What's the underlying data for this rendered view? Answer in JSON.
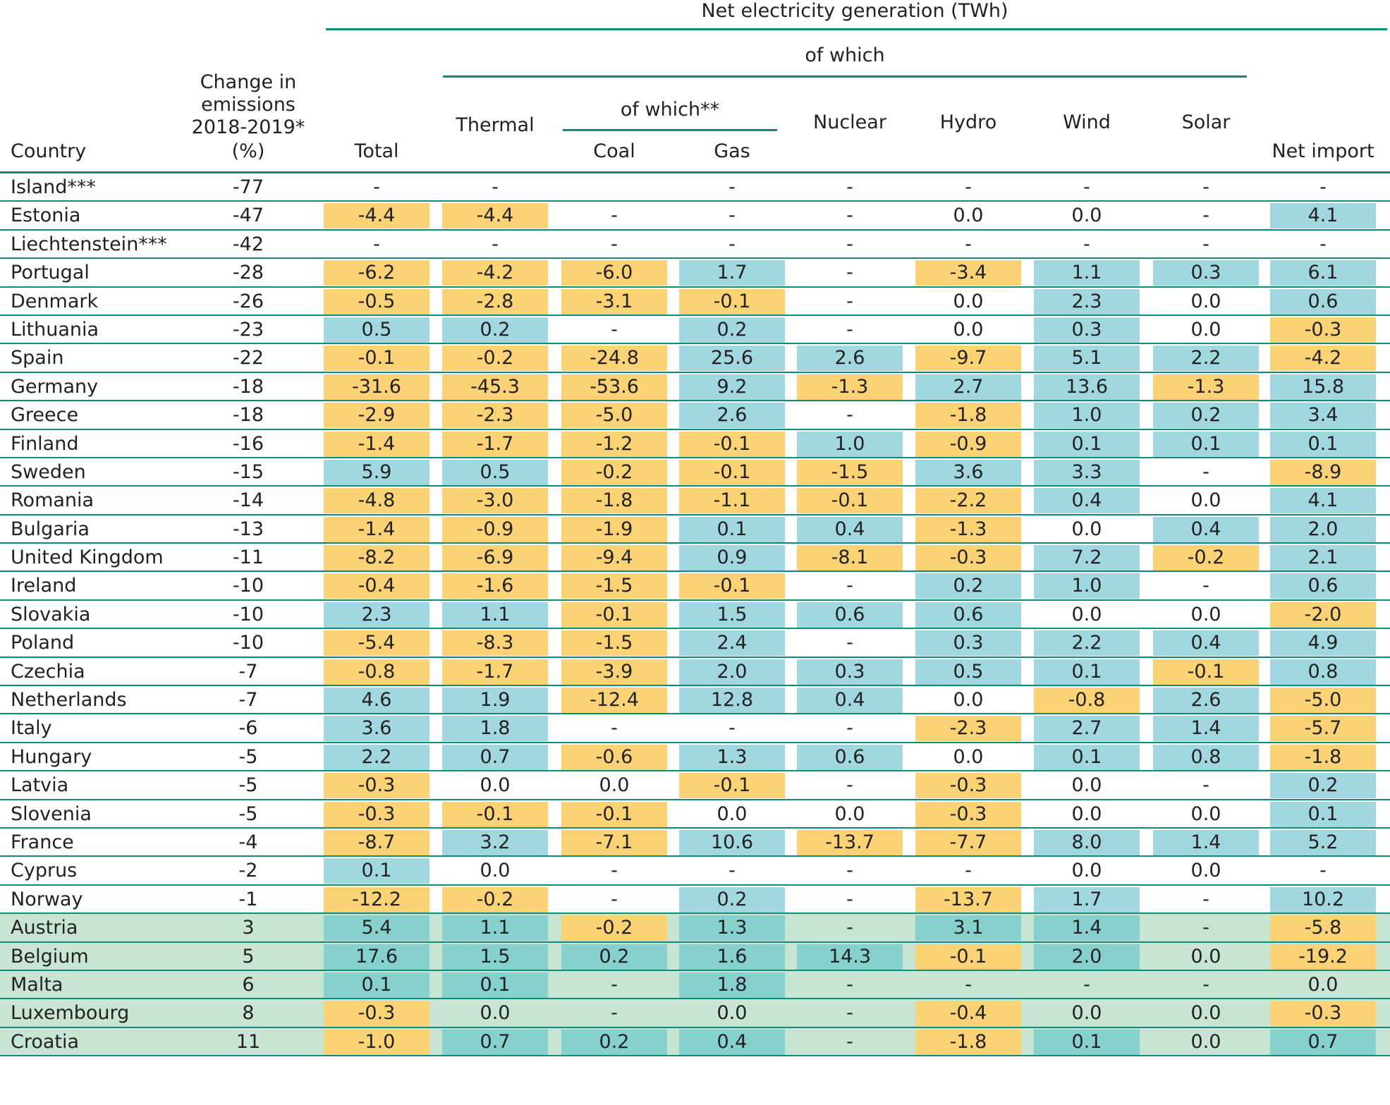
{
  "header": {
    "net_generation": "Net electricity generation (TWh)",
    "of_which": "of which",
    "of_which_sub": "of which**",
    "country": "Country",
    "change_line1": "Change in",
    "change_line2": "emissions",
    "change_line3": "2018-2019*",
    "change_line4": "(%)",
    "total": "Total",
    "thermal": "Thermal",
    "coal": "Coal",
    "gas": "Gas",
    "nuclear": "Nuclear",
    "hydro": "Hydro",
    "wind": "Wind",
    "solar": "Solar",
    "net_import": "Net import"
  },
  "colors": {
    "rule": "#0f8c78",
    "decrease_fill": "#fbd374",
    "increase_fill": "#a1d7de",
    "increase_fill_on_green": "#86d1cd",
    "increasing_emissions_row": "#c8e4d2"
  },
  "rows": [
    {
      "country": "Island***",
      "change": "-77",
      "values": [
        "-",
        "-",
        "",
        "-",
        "-",
        "-",
        "-",
        "-",
        "-"
      ]
    },
    {
      "country": "Estonia",
      "change": "-47",
      "values": [
        "-4.4",
        "-4.4",
        "-",
        "-",
        "-",
        "0.0",
        "0.0",
        "-",
        "4.1"
      ]
    },
    {
      "country": "Liechtenstein***",
      "change": "-42",
      "values": [
        "-",
        "-",
        "-",
        "-",
        "-",
        "-",
        "-",
        "-",
        "-"
      ]
    },
    {
      "country": "Portugal",
      "change": "-28",
      "values": [
        "-6.2",
        "-4.2",
        "-6.0",
        "1.7",
        "-",
        "-3.4",
        "1.1",
        "0.3",
        "6.1"
      ]
    },
    {
      "country": "Denmark",
      "change": "-26",
      "values": [
        "-0.5",
        "-2.8",
        "-3.1",
        "-0.1",
        "-",
        "0.0",
        "2.3",
        "0.0",
        "0.6"
      ]
    },
    {
      "country": "Lithuania",
      "change": "-23",
      "values": [
        "0.5",
        "0.2",
        "-",
        "0.2",
        "-",
        "0.0",
        "0.3",
        "0.0",
        "-0.3"
      ]
    },
    {
      "country": "Spain",
      "change": "-22",
      "values": [
        "-0.1",
        "-0.2",
        "-24.8",
        "25.6",
        "2.6",
        "-9.7",
        "5.1",
        "2.2",
        "-4.2"
      ]
    },
    {
      "country": "Germany",
      "change": "-18",
      "values": [
        "-31.6",
        "-45.3",
        "-53.6",
        "9.2",
        "-1.3",
        "2.7",
        "13.6",
        "-1.3",
        "15.8"
      ]
    },
    {
      "country": "Greece",
      "change": "-18",
      "values": [
        "-2.9",
        "-2.3",
        "-5.0",
        "2.6",
        "-",
        "-1.8",
        "1.0",
        "0.2",
        "3.4"
      ]
    },
    {
      "country": "Finland",
      "change": "-16",
      "values": [
        "-1.4",
        "-1.7",
        "-1.2",
        "-0.1",
        "1.0",
        "-0.9",
        "0.1",
        "0.1",
        "0.1"
      ]
    },
    {
      "country": "Sweden",
      "change": "-15",
      "values": [
        "5.9",
        "0.5",
        "-0.2",
        "-0.1",
        "-1.5",
        "3.6",
        "3.3",
        "-",
        "-8.9"
      ]
    },
    {
      "country": "Romania",
      "change": "-14",
      "values": [
        "-4.8",
        "-3.0",
        "-1.8",
        "-1.1",
        "-0.1",
        "-2.2",
        "0.4",
        "0.0",
        "4.1"
      ]
    },
    {
      "country": "Bulgaria",
      "change": "-13",
      "values": [
        "-1.4",
        "-0.9",
        "-1.9",
        "0.1",
        "0.4",
        "-1.3",
        "0.0",
        "0.4",
        "2.0"
      ]
    },
    {
      "country": "United Kingdom",
      "change": "-11",
      "values": [
        "-8.2",
        "-6.9",
        "-9.4",
        "0.9",
        "-8.1",
        "-0.3",
        "7.2",
        "-0.2",
        "2.1"
      ]
    },
    {
      "country": "Ireland",
      "change": "-10",
      "values": [
        "-0.4",
        "-1.6",
        "-1.5",
        "-0.1",
        "-",
        "0.2",
        "1.0",
        "-",
        "0.6"
      ]
    },
    {
      "country": "Slovakia",
      "change": "-10",
      "values": [
        "2.3",
        "1.1",
        "-0.1",
        "1.5",
        "0.6",
        "0.6",
        "0.0",
        "0.0",
        "-2.0"
      ]
    },
    {
      "country": "Poland",
      "change": "-10",
      "values": [
        "-5.4",
        "-8.3",
        "-1.5",
        "2.4",
        "-",
        "0.3",
        "2.2",
        "0.4",
        "4.9"
      ]
    },
    {
      "country": "Czechia",
      "change": "-7",
      "values": [
        "-0.8",
        "-1.7",
        "-3.9",
        "2.0",
        "0.3",
        "0.5",
        "0.1",
        "-0.1",
        "0.8"
      ]
    },
    {
      "country": "Netherlands",
      "change": "-7",
      "values": [
        "4.6",
        "1.9",
        "-12.4",
        "12.8",
        "0.4",
        "0.0",
        "-0.8",
        "2.6",
        "-5.0"
      ]
    },
    {
      "country": "Italy",
      "change": "-6",
      "values": [
        "3.6",
        "1.8",
        "-",
        "-",
        "-",
        "-2.3",
        "2.7",
        "1.4",
        "-5.7"
      ]
    },
    {
      "country": "Hungary",
      "change": "-5",
      "values": [
        "2.2",
        "0.7",
        "-0.6",
        "1.3",
        "0.6",
        "0.0",
        "0.1",
        "0.8",
        "-1.8"
      ]
    },
    {
      "country": "Latvia",
      "change": "-5",
      "values": [
        "-0.3",
        "0.0",
        "0.0",
        "-0.1",
        "-",
        "-0.3",
        "0.0",
        "-",
        "0.2"
      ]
    },
    {
      "country": "Slovenia",
      "change": "-5",
      "values": [
        "-0.3",
        "-0.1",
        "-0.1",
        "0.0",
        "0.0",
        "-0.3",
        "0.0",
        "0.0",
        "0.1"
      ]
    },
    {
      "country": "France",
      "change": "-4",
      "values": [
        "-8.7",
        "3.2",
        "-7.1",
        "10.6",
        "-13.7",
        "-7.7",
        "8.0",
        "1.4",
        "5.2"
      ]
    },
    {
      "country": "Cyprus",
      "change": "-2",
      "values": [
        "0.1",
        "0.0",
        "-",
        "-",
        "-",
        "-",
        "0.0",
        "0.0",
        "-"
      ]
    },
    {
      "country": "Norway",
      "change": "-1",
      "values": [
        "-12.2",
        "-0.2",
        "-",
        "0.2",
        "-",
        "-13.7",
        "1.7",
        "-",
        "10.2"
      ]
    },
    {
      "country": "Austria",
      "change": "3",
      "values": [
        "5.4",
        "1.1",
        "-0.2",
        "1.3",
        "-",
        "3.1",
        "1.4",
        "-",
        "-5.8"
      ]
    },
    {
      "country": "Belgium",
      "change": "5",
      "values": [
        "17.6",
        "1.5",
        "0.2",
        "1.6",
        "14.3",
        "-0.1",
        "2.0",
        "0.0",
        "-19.2"
      ]
    },
    {
      "country": "Malta",
      "change": "6",
      "values": [
        "0.1",
        "0.1",
        "-",
        "1.8",
        "-",
        "-",
        "-",
        "-",
        "0.0"
      ]
    },
    {
      "country": "Luxembourg",
      "change": "8",
      "values": [
        "-0.3",
        "0.0",
        "-",
        "0.0",
        "-",
        "-0.4",
        "0.0",
        "0.0",
        "-0.3"
      ]
    },
    {
      "country": "Croatia",
      "change": "11",
      "values": [
        "-1.0",
        "0.7",
        "0.2",
        "0.4",
        "-",
        "-1.8",
        "0.1",
        "0.0",
        "0.7"
      ]
    }
  ]
}
